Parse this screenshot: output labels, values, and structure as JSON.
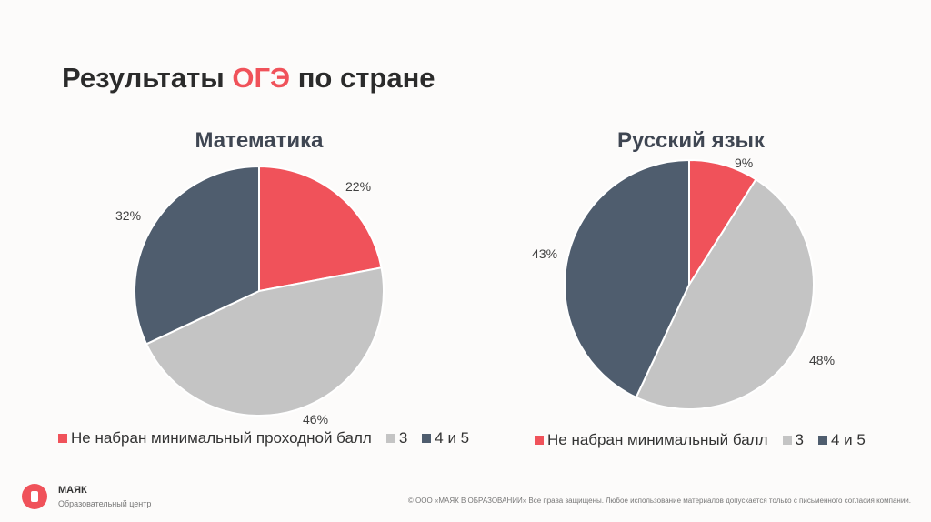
{
  "title": {
    "pre": "Результаты ",
    "accent": "ОГЭ",
    "post": " по стране"
  },
  "colors": {
    "fail": "#f0525a",
    "three": "#c4c4c4",
    "good": "#4f5d6e",
    "accent": "#f0525a"
  },
  "chart_data": [
    {
      "type": "pie",
      "title": "Математика",
      "categories": [
        "Не набран минимальный проходной балл",
        "3",
        "4 и 5"
      ],
      "values": [
        22,
        46,
        32
      ],
      "labels": [
        "22%",
        "46%",
        "32%"
      ],
      "legend": "bottom"
    },
    {
      "type": "pie",
      "title": "Русский язык",
      "categories": [
        "Не набран минимальный балл",
        "3",
        "4 и 5"
      ],
      "values": [
        9,
        48,
        43
      ],
      "labels": [
        "9%",
        "48%",
        "43%"
      ],
      "legend": "bottom"
    }
  ],
  "footer": {
    "brand": "МАЯК",
    "subtitle": "Образовательный центр",
    "copyright": "© ООО «МАЯК В ОБРАЗОВАНИИ» Все права защищены. Любое использование материалов допускается только с письменного согласия компании."
  }
}
